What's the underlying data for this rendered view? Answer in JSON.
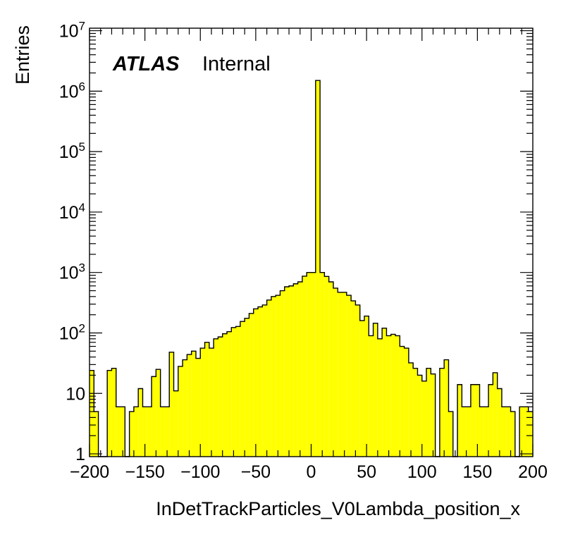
{
  "chart_data": {
    "type": "bar",
    "xlabel": "InDetTrackParticles_V0Lambda_position_x",
    "ylabel": "Entries",
    "label_bold": "ATLAS",
    "label_text": "Internal",
    "fill_color": "#ffff00",
    "line_color": "#000000",
    "log_y": true,
    "grid": false,
    "xlim": [
      -200,
      200
    ],
    "ylim": [
      0.9,
      11000000
    ],
    "x_ticks": [
      {
        "value": -200,
        "label": "−200"
      },
      {
        "value": -150,
        "label": "−150"
      },
      {
        "value": -100,
        "label": "−100"
      },
      {
        "value": -50,
        "label": "−50"
      },
      {
        "value": 0,
        "label": "0"
      },
      {
        "value": 50,
        "label": "50"
      },
      {
        "value": 100,
        "label": "100"
      },
      {
        "value": 150,
        "label": "150"
      },
      {
        "value": 200,
        "label": "200"
      }
    ],
    "y_ticks": [
      {
        "value": 1,
        "base": "1",
        "exp": ""
      },
      {
        "value": 10,
        "base": "10",
        "exp": ""
      },
      {
        "value": 100,
        "base": "10",
        "exp": "2"
      },
      {
        "value": 1000,
        "base": "10",
        "exp": "3"
      },
      {
        "value": 10000,
        "base": "10",
        "exp": "4"
      },
      {
        "value": 100000,
        "base": "10",
        "exp": "5"
      },
      {
        "value": 1000000,
        "base": "10",
        "exp": "6"
      },
      {
        "value": 10000000,
        "base": "10",
        "exp": "7"
      }
    ],
    "bin_edges_start": -200,
    "bin_width": 4,
    "values": [
      24,
      5,
      0,
      0,
      24,
      26,
      6,
      6,
      0,
      5,
      6,
      12,
      6,
      6,
      19,
      25,
      6,
      6,
      48,
      11,
      28,
      36,
      44,
      50,
      38,
      56,
      70,
      56,
      80,
      86,
      97,
      105,
      123,
      128,
      155,
      175,
      210,
      250,
      270,
      290,
      350,
      400,
      420,
      500,
      580,
      600,
      650,
      700,
      870,
      1000,
      1000,
      1500000,
      1000,
      860,
      700,
      550,
      470,
      470,
      420,
      340,
      290,
      160,
      190,
      90,
      145,
      80,
      120,
      90,
      95,
      90,
      60,
      56,
      32,
      26,
      20,
      16,
      26,
      21,
      0,
      26,
      36,
      5,
      0,
      14,
      6,
      6,
      14,
      14,
      6,
      6,
      14,
      22,
      12,
      6,
      6,
      5,
      0,
      6,
      6,
      5
    ]
  }
}
